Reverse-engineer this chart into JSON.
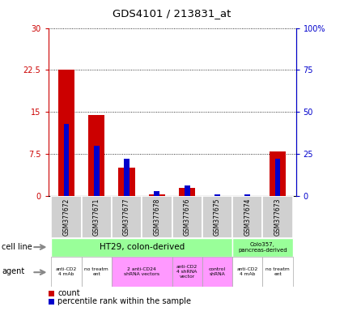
{
  "title": "GDS4101 / 213831_at",
  "samples": [
    "GSM377672",
    "GSM377671",
    "GSM377677",
    "GSM377678",
    "GSM377676",
    "GSM377675",
    "GSM377674",
    "GSM377673"
  ],
  "count_values": [
    22.5,
    14.5,
    5.0,
    0.3,
    1.5,
    0.0,
    0.0,
    8.0
  ],
  "percentile_values": [
    43,
    30,
    22,
    3,
    6,
    1,
    1,
    22
  ],
  "ylim_left": [
    0,
    30
  ],
  "ylim_right": [
    0,
    100
  ],
  "yticks_left": [
    0,
    7.5,
    15,
    22.5,
    30
  ],
  "ytick_labels_left": [
    "0",
    "7.5",
    "15",
    "22.5",
    "30"
  ],
  "yticks_right": [
    0,
    25,
    50,
    75,
    100
  ],
  "ytick_labels_right": [
    "0",
    "25",
    "50",
    "75",
    "100%"
  ],
  "count_color": "#cc0000",
  "percentile_color": "#0000cc",
  "bar_width": 0.55,
  "pct_bar_width": 0.18,
  "cell_line_ht29": "HT29, colon-derived",
  "cell_line_colo": "Colo357,\npancreas-derived",
  "cell_line_ht29_color": "#99ff99",
  "cell_line_colo_color": "#99ff99",
  "bg_color": "#ffffff",
  "plot_bg": "#ffffff",
  "agent_data": [
    [
      0,
      1,
      "#ffffff",
      "anti-CD2\n4 mAb"
    ],
    [
      1,
      2,
      "#ffffff",
      "no treatm\nent"
    ],
    [
      2,
      4,
      "#ff99ff",
      "2 anti-CD24\nshRNA vectors"
    ],
    [
      4,
      5,
      "#ff99ff",
      "anti-CD2\n4 shRNA\nvector"
    ],
    [
      5,
      6,
      "#ff99ff",
      "control\nshRNA"
    ],
    [
      6,
      7,
      "#ffffff",
      "anti-CD2\n4 mAb"
    ],
    [
      7,
      8,
      "#ffffff",
      "no treatm\nent"
    ]
  ]
}
